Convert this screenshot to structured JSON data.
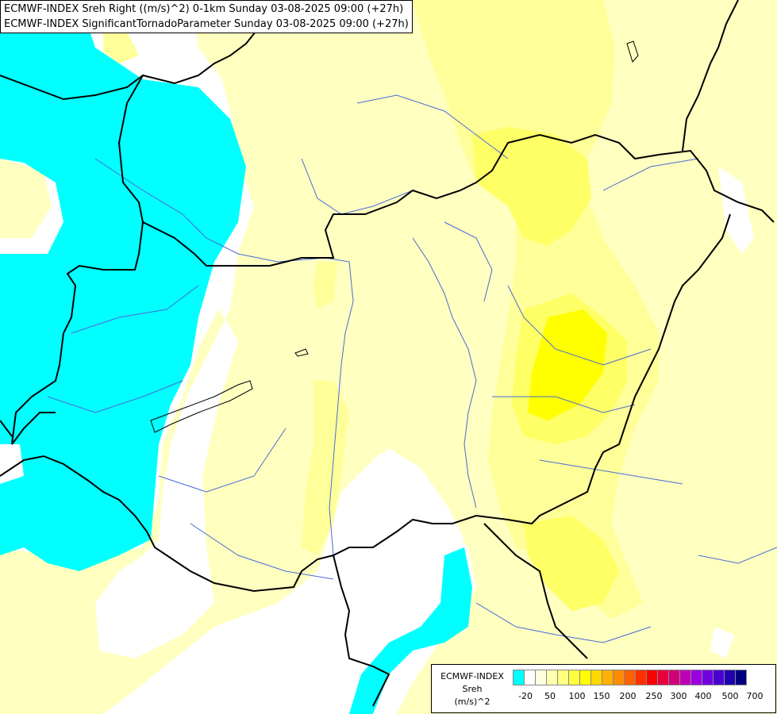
{
  "titles": {
    "line1": "ECMWF-INDEX Sreh Right ((m/s)^2) 0-1km Sunday 03-08-2025 09:00 (+27h)",
    "line2": "ECMWF-INDEX SignificantTornadoParameter Sunday 03-08-2025 09:00 (+27h)"
  },
  "colors": {
    "negative": "#00ffff",
    "neutral": "#ffffff",
    "light_yellow": "#ffffc0",
    "yellow1": "#ffff99",
    "yellow2": "#ffff66",
    "yellow3": "#ffff00",
    "border": "#000000",
    "river": "#4a6bd6"
  },
  "legend": {
    "title": "ECMWF-INDEX",
    "param": "Sreh",
    "unit": "(m/s)^2",
    "tick_labels": [
      "-20",
      "50",
      "100",
      "150",
      "200",
      "250",
      "300",
      "400",
      "500",
      "700"
    ],
    "swatch_colors": [
      "#00ffff",
      "#ffffff",
      "#ffffe0",
      "#ffffb0",
      "#ffff80",
      "#ffff40",
      "#ffff00",
      "#ffd800",
      "#ffb000",
      "#ff8c00",
      "#ff6000",
      "#ff3000",
      "#ff0000",
      "#e8003c",
      "#d00078",
      "#c000b4",
      "#9a00e0",
      "#7000e0",
      "#4800d0",
      "#2000b0",
      "#000080"
    ]
  }
}
